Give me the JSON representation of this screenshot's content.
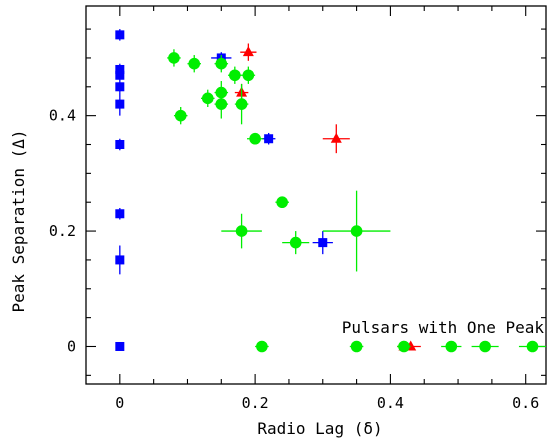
{
  "chart_data": {
    "type": "scatter",
    "xlabel": "Radio Lag (δ)",
    "ylabel": "Peak Separation (Δ)",
    "xlim": [
      -0.05,
      0.63
    ],
    "ylim": [
      -0.065,
      0.59
    ],
    "x_ticks": [
      0,
      0.2,
      0.4,
      0.6
    ],
    "y_ticks": [
      0,
      0.2,
      0.4
    ],
    "x_tick_labels": [
      "0",
      "0.2",
      "0.4",
      "0.6"
    ],
    "y_tick_labels": [
      "0",
      "0.2",
      "0.4"
    ],
    "grid": false,
    "annotation": "Pulsars with One Peak",
    "series": [
      {
        "marker": "square",
        "color": "#0000ff",
        "points": [
          {
            "x": 0,
            "y": 0.54,
            "xerr": 0.003,
            "yerr": 0.01
          },
          {
            "x": 0,
            "y": 0.48,
            "xerr": 0.003,
            "yerr": 0.01
          },
          {
            "x": 0,
            "y": 0.47,
            "xerr": 0.003,
            "yerr": 0.01
          },
          {
            "x": 0,
            "y": 0.45,
            "xerr": 0.003,
            "yerr": 0.01
          },
          {
            "x": 0,
            "y": 0.42,
            "xerr": 0.003,
            "yerr": 0.02
          },
          {
            "x": 0,
            "y": 0.35,
            "xerr": 0.003,
            "yerr": 0.01
          },
          {
            "x": 0,
            "y": 0.23,
            "xerr": 0.003,
            "yerr": 0.01
          },
          {
            "x": 0,
            "y": 0.15,
            "xerr": 0.003,
            "yerr": 0.025
          },
          {
            "x": 0,
            "y": 0.0,
            "xerr": 0,
            "yerr": 0
          },
          {
            "x": 0.15,
            "y": 0.5,
            "xerr": 0.015,
            "yerr": 0.01
          },
          {
            "x": 0.22,
            "y": 0.36,
            "xerr": 0.01,
            "yerr": 0.01
          },
          {
            "x": 0.3,
            "y": 0.18,
            "xerr": 0.015,
            "yerr": 0.02
          }
        ]
      },
      {
        "marker": "triangle",
        "color": "#ff0000",
        "points": [
          {
            "x": 0.19,
            "y": 0.51,
            "xerr": 0.012,
            "yerr": 0.015
          },
          {
            "x": 0.18,
            "y": 0.44,
            "xerr": 0.01,
            "yerr": 0.015
          },
          {
            "x": 0.32,
            "y": 0.36,
            "xerr": 0.02,
            "yerr": 0.025
          },
          {
            "x": 0.42,
            "y": 0.0,
            "xerr": 0.01,
            "yerr": 0.005
          },
          {
            "x": 0.43,
            "y": 0.0,
            "xerr": 0.015,
            "yerr": 0
          }
        ]
      },
      {
        "marker": "circle",
        "color": "#00ee00",
        "points": [
          {
            "x": 0.08,
            "y": 0.5,
            "xerr": 0.01,
            "yerr": 0.015
          },
          {
            "x": 0.11,
            "y": 0.49,
            "xerr": 0.01,
            "yerr": 0.015
          },
          {
            "x": 0.15,
            "y": 0.49,
            "xerr": 0.01,
            "yerr": 0.015
          },
          {
            "x": 0.17,
            "y": 0.47,
            "xerr": 0.01,
            "yerr": 0.015
          },
          {
            "x": 0.19,
            "y": 0.47,
            "xerr": 0.01,
            "yerr": 0.015
          },
          {
            "x": 0.15,
            "y": 0.44,
            "xerr": 0.01,
            "yerr": 0.02
          },
          {
            "x": 0.13,
            "y": 0.43,
            "xerr": 0.01,
            "yerr": 0.015
          },
          {
            "x": 0.15,
            "y": 0.42,
            "xerr": 0.01,
            "yerr": 0.025
          },
          {
            "x": 0.18,
            "y": 0.42,
            "xerr": 0.01,
            "yerr": 0.035
          },
          {
            "x": 0.09,
            "y": 0.4,
            "xerr": 0.01,
            "yerr": 0.015
          },
          {
            "x": 0.2,
            "y": 0.36,
            "xerr": 0.012,
            "yerr": 0.01
          },
          {
            "x": 0.24,
            "y": 0.25,
            "xerr": 0.01,
            "yerr": 0.01
          },
          {
            "x": 0.18,
            "y": 0.2,
            "xerr": 0.03,
            "yerr": 0.03
          },
          {
            "x": 0.26,
            "y": 0.18,
            "xerr": 0.02,
            "yerr": 0.02
          },
          {
            "x": 0.35,
            "y": 0.2,
            "xerr": 0.05,
            "yerr": 0.07
          },
          {
            "x": 0.21,
            "y": 0.0,
            "xerr": 0.01,
            "yerr": 0
          },
          {
            "x": 0.35,
            "y": 0.0,
            "xerr": 0.01,
            "yerr": 0
          },
          {
            "x": 0.42,
            "y": 0.0,
            "xerr": 0.01,
            "yerr": 0
          },
          {
            "x": 0.49,
            "y": 0.0,
            "xerr": 0.015,
            "yerr": 0
          },
          {
            "x": 0.54,
            "y": 0.0,
            "xerr": 0.02,
            "yerr": 0
          },
          {
            "x": 0.61,
            "y": 0.0,
            "xerr": 0.02,
            "yerr": 0
          }
        ]
      }
    ]
  }
}
